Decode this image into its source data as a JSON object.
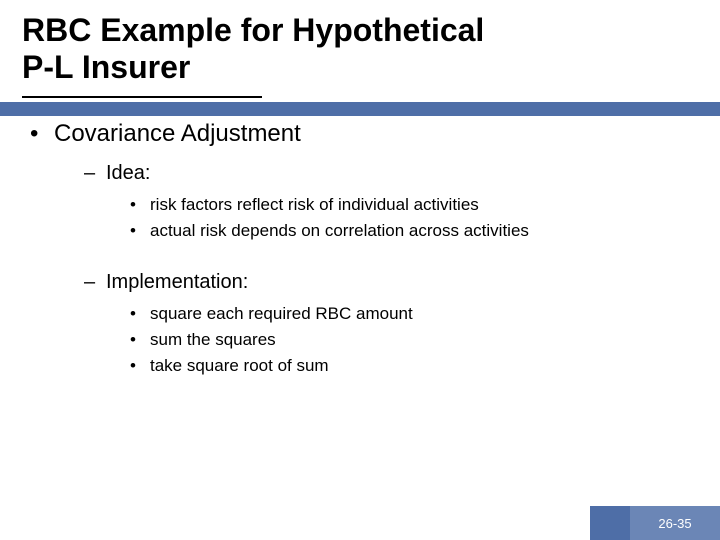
{
  "title_line1": "RBC Example for Hypothetical",
  "title_line2": "P-L Insurer",
  "main_bullet": "Covariance Adjustment",
  "idea_label": "Idea:",
  "idea_items": [
    "risk factors reflect risk of individual activities",
    "actual risk depends on correlation across activities"
  ],
  "impl_label": "Implementation:",
  "impl_items": [
    "square each required RBC amount",
    "sum the squares",
    "take square root of sum"
  ],
  "page_number": "26-35",
  "colors": {
    "bar": "#4e6ea7",
    "footer_inner": "#6b86b6",
    "text": "#000000",
    "bg": "#ffffff"
  }
}
